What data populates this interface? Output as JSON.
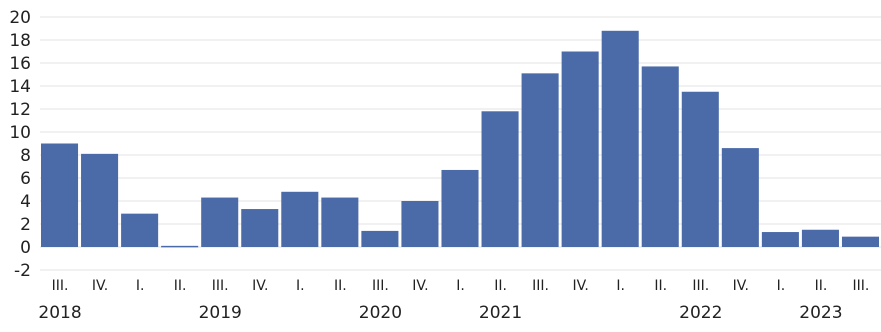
{
  "chart_data": {
    "type": "bar",
    "title": "",
    "xlabel": "",
    "ylabel": "",
    "ylim": [
      -2,
      20
    ],
    "yticks": [
      -2,
      0,
      2,
      4,
      6,
      8,
      10,
      12,
      14,
      16,
      18,
      20
    ],
    "grid": true,
    "bar_color": "#4a6aa8",
    "categories": [
      "III.",
      "IV.",
      "I.",
      "II.",
      "III.",
      "IV.",
      "I.",
      "II.",
      "III.",
      "IV.",
      "I.",
      "II.",
      "III.",
      "IV.",
      "I.",
      "II.",
      "III.",
      "IV.",
      "I.",
      "II.",
      "III."
    ],
    "values": [
      9.0,
      8.1,
      2.9,
      0.1,
      4.3,
      3.3,
      4.8,
      4.3,
      1.4,
      4.0,
      6.7,
      11.8,
      15.1,
      17.0,
      18.8,
      15.7,
      13.5,
      8.6,
      1.3,
      1.5,
      0.9
    ],
    "years": [
      {
        "label": "2018",
        "index": 0
      },
      {
        "label": "2019",
        "index": 4
      },
      {
        "label": "2020",
        "index": 8
      },
      {
        "label": "2021",
        "index": 11
      },
      {
        "label": "2022",
        "index": 16
      },
      {
        "label": "2023",
        "index": 19
      }
    ]
  }
}
